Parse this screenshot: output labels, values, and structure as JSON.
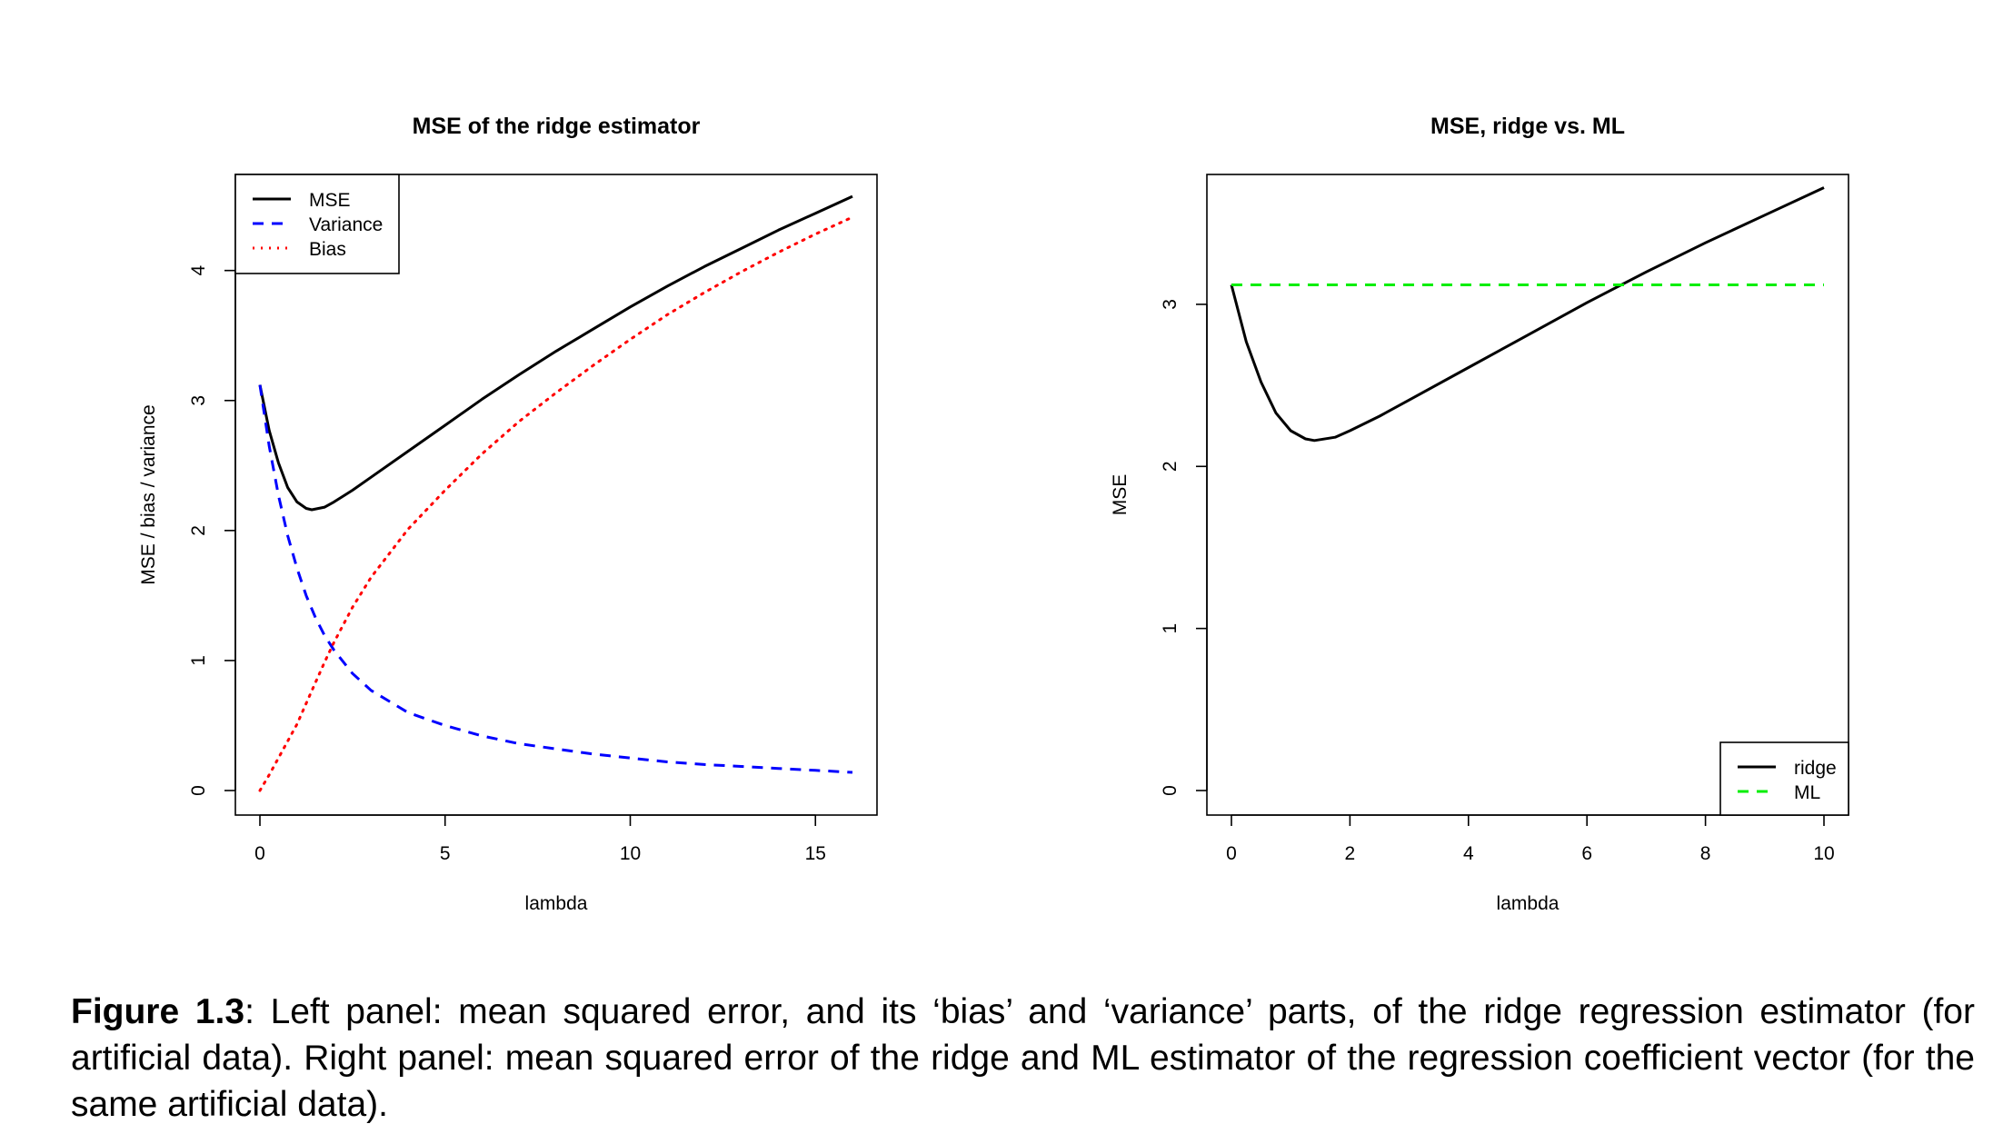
{
  "chart_data": [
    {
      "type": "line",
      "title": "MSE of the ridge estimator",
      "xlabel": "lambda",
      "ylabel": "MSE / bias / variance",
      "xlim": [
        0,
        16
      ],
      "ylim": [
        0,
        4.55
      ],
      "xticks": [
        "0",
        "5",
        "10",
        "15"
      ],
      "yticks": [
        "0",
        "1",
        "2",
        "3",
        "4"
      ],
      "grid": false,
      "legend": "top-left",
      "series": [
        {
          "name": "MSE",
          "color": "#000000",
          "dash": "solid",
          "x": [
            0,
            0.25,
            0.5,
            0.75,
            1,
            1.25,
            1.4,
            1.75,
            2,
            2.5,
            3,
            4,
            5,
            6,
            7,
            8,
            9,
            10,
            11,
            12,
            13,
            14,
            15,
            16
          ],
          "y": [
            3.12,
            2.77,
            2.52,
            2.33,
            2.22,
            2.17,
            2.16,
            2.18,
            2.22,
            2.31,
            2.41,
            2.61,
            2.81,
            3.01,
            3.2,
            3.38,
            3.55,
            3.72,
            3.88,
            4.03,
            4.17,
            4.31,
            4.44,
            4.57
          ]
        },
        {
          "name": "Variance",
          "color": "#0000ff",
          "dash": "dashed",
          "x": [
            0,
            0.25,
            0.5,
            0.75,
            1,
            1.25,
            1.5,
            1.75,
            2,
            2.5,
            3,
            4,
            5,
            6,
            7,
            8,
            9,
            10,
            11,
            12,
            13,
            14,
            15,
            16
          ],
          "y": [
            3.12,
            2.65,
            2.27,
            1.96,
            1.71,
            1.5,
            1.33,
            1.19,
            1.08,
            0.9,
            0.77,
            0.6,
            0.5,
            0.42,
            0.36,
            0.32,
            0.28,
            0.25,
            0.22,
            0.2,
            0.185,
            0.17,
            0.155,
            0.14
          ]
        },
        {
          "name": "Bias",
          "color": "#ff0000",
          "dash": "dotted",
          "x": [
            0,
            0.25,
            0.5,
            0.75,
            1,
            1.25,
            1.5,
            1.75,
            2,
            2.5,
            3,
            4,
            5,
            6,
            7,
            8,
            9,
            10,
            11,
            12,
            13,
            14,
            15,
            16
          ],
          "y": [
            0,
            0.12,
            0.25,
            0.38,
            0.51,
            0.67,
            0.83,
            0.99,
            1.14,
            1.41,
            1.64,
            2.01,
            2.31,
            2.59,
            2.84,
            3.06,
            3.27,
            3.47,
            3.66,
            3.83,
            3.99,
            4.14,
            4.28,
            4.41
          ]
        }
      ]
    },
    {
      "type": "line",
      "title": "MSE, ridge vs. ML",
      "xlabel": "lambda",
      "ylabel": "MSE",
      "xlim": [
        0,
        10
      ],
      "ylim": [
        0,
        3.65
      ],
      "xticks": [
        "0",
        "2",
        "4",
        "6",
        "8",
        "10"
      ],
      "yticks": [
        "0",
        "1",
        "2",
        "3"
      ],
      "grid": false,
      "legend": "bottom-right",
      "series": [
        {
          "name": "ridge",
          "color": "#000000",
          "dash": "solid",
          "x": [
            0,
            0.25,
            0.5,
            0.75,
            1,
            1.25,
            1.4,
            1.75,
            2,
            2.5,
            3,
            4,
            5,
            6,
            7,
            8,
            9,
            10
          ],
          "y": [
            3.12,
            2.77,
            2.52,
            2.33,
            2.22,
            2.17,
            2.16,
            2.18,
            2.22,
            2.31,
            2.41,
            2.61,
            2.81,
            3.01,
            3.2,
            3.38,
            3.55,
            3.72
          ]
        },
        {
          "name": "ML",
          "color": "#00ee00",
          "dash": "dashed",
          "x": [
            0,
            10
          ],
          "y": [
            3.12,
            3.12
          ]
        }
      ]
    }
  ],
  "caption": {
    "label": "Figure 1.3",
    "text": ": Left panel: mean squared error, and its ‘bias’ and ‘variance’ parts, of the ridge regression estimator (for artificial data). Right panel: mean squared error of the ridge and ML estimator of the regression coefficient vector (for the same artificial data)."
  }
}
